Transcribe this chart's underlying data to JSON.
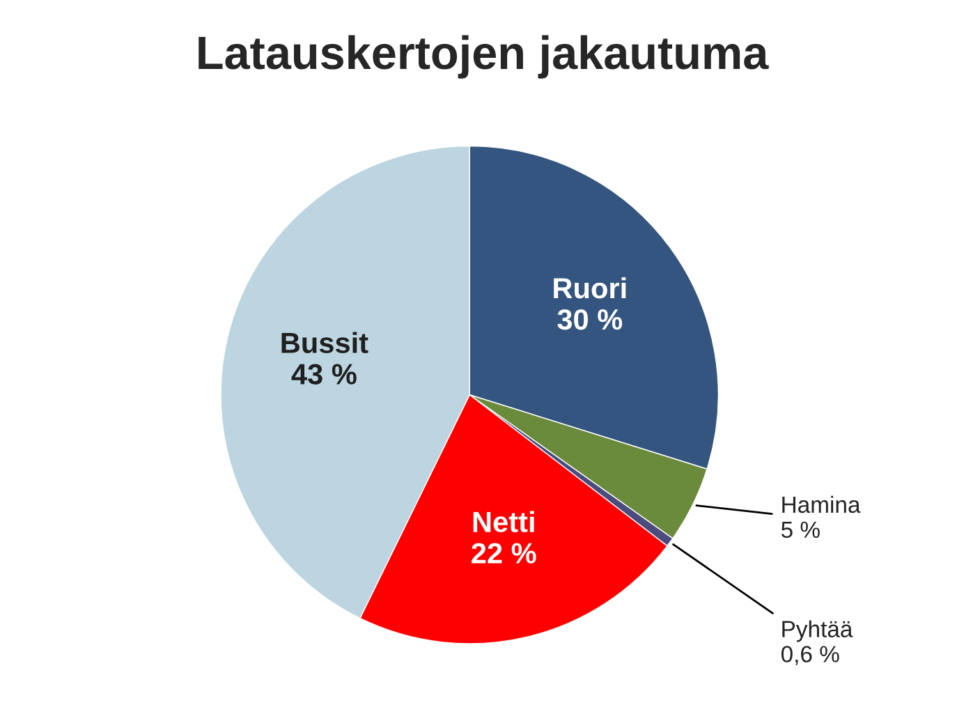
{
  "chart_data": {
    "type": "pie",
    "title": "Latauskertojen jakautuma",
    "categories": [
      "Ruori",
      "Hamina",
      "Pyhtää",
      "Netti",
      "Bussit"
    ],
    "values": [
      30,
      5,
      0.6,
      22,
      43
    ],
    "value_labels": [
      "30 %",
      "5 %",
      "0,6 %",
      "22 %",
      "43 %"
    ],
    "colors": [
      "#34557f",
      "#6a8a3c",
      "#4b4b7d",
      "#ff0000",
      "#bcd5e0"
    ],
    "legend": false
  }
}
